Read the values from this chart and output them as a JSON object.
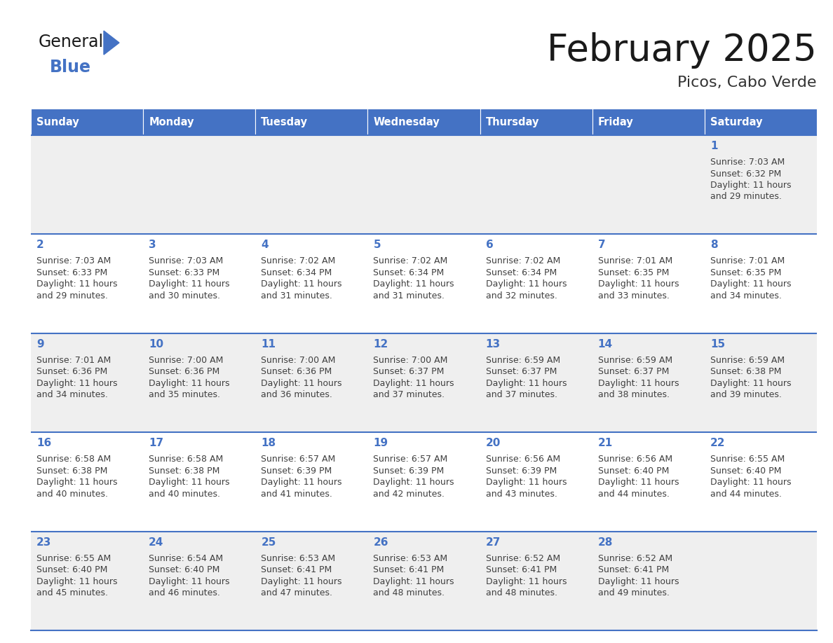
{
  "title": "February 2025",
  "subtitle": "Picos, Cabo Verde",
  "days_of_week": [
    "Sunday",
    "Monday",
    "Tuesday",
    "Wednesday",
    "Thursday",
    "Friday",
    "Saturday"
  ],
  "header_bg": "#4472C4",
  "header_text": "#FFFFFF",
  "row_bg_odd": "#EFEFEF",
  "row_bg_even": "#FFFFFF",
  "cell_border_color": "#4472C4",
  "day_num_color": "#4472C4",
  "info_text_color": "#404040",
  "title_color": "#1a1a1a",
  "subtitle_color": "#333333",
  "logo_general_color": "#1a1a1a",
  "logo_blue_color": "#4472C4",
  "logo_triangle_color": "#4472C4",
  "calendar_data": [
    [
      null,
      null,
      null,
      null,
      null,
      null,
      {
        "day": "1",
        "sunrise": "Sunrise: 7:03 AM",
        "sunset": "Sunset: 6:32 PM",
        "daylight1": "Daylight: 11 hours",
        "daylight2": "and 29 minutes."
      }
    ],
    [
      {
        "day": "2",
        "sunrise": "Sunrise: 7:03 AM",
        "sunset": "Sunset: 6:33 PM",
        "daylight1": "Daylight: 11 hours",
        "daylight2": "and 29 minutes."
      },
      {
        "day": "3",
        "sunrise": "Sunrise: 7:03 AM",
        "sunset": "Sunset: 6:33 PM",
        "daylight1": "Daylight: 11 hours",
        "daylight2": "and 30 minutes."
      },
      {
        "day": "4",
        "sunrise": "Sunrise: 7:02 AM",
        "sunset": "Sunset: 6:34 PM",
        "daylight1": "Daylight: 11 hours",
        "daylight2": "and 31 minutes."
      },
      {
        "day": "5",
        "sunrise": "Sunrise: 7:02 AM",
        "sunset": "Sunset: 6:34 PM",
        "daylight1": "Daylight: 11 hours",
        "daylight2": "and 31 minutes."
      },
      {
        "day": "6",
        "sunrise": "Sunrise: 7:02 AM",
        "sunset": "Sunset: 6:34 PM",
        "daylight1": "Daylight: 11 hours",
        "daylight2": "and 32 minutes."
      },
      {
        "day": "7",
        "sunrise": "Sunrise: 7:01 AM",
        "sunset": "Sunset: 6:35 PM",
        "daylight1": "Daylight: 11 hours",
        "daylight2": "and 33 minutes."
      },
      {
        "day": "8",
        "sunrise": "Sunrise: 7:01 AM",
        "sunset": "Sunset: 6:35 PM",
        "daylight1": "Daylight: 11 hours",
        "daylight2": "and 34 minutes."
      }
    ],
    [
      {
        "day": "9",
        "sunrise": "Sunrise: 7:01 AM",
        "sunset": "Sunset: 6:36 PM",
        "daylight1": "Daylight: 11 hours",
        "daylight2": "and 34 minutes."
      },
      {
        "day": "10",
        "sunrise": "Sunrise: 7:00 AM",
        "sunset": "Sunset: 6:36 PM",
        "daylight1": "Daylight: 11 hours",
        "daylight2": "and 35 minutes."
      },
      {
        "day": "11",
        "sunrise": "Sunrise: 7:00 AM",
        "sunset": "Sunset: 6:36 PM",
        "daylight1": "Daylight: 11 hours",
        "daylight2": "and 36 minutes."
      },
      {
        "day": "12",
        "sunrise": "Sunrise: 7:00 AM",
        "sunset": "Sunset: 6:37 PM",
        "daylight1": "Daylight: 11 hours",
        "daylight2": "and 37 minutes."
      },
      {
        "day": "13",
        "sunrise": "Sunrise: 6:59 AM",
        "sunset": "Sunset: 6:37 PM",
        "daylight1": "Daylight: 11 hours",
        "daylight2": "and 37 minutes."
      },
      {
        "day": "14",
        "sunrise": "Sunrise: 6:59 AM",
        "sunset": "Sunset: 6:37 PM",
        "daylight1": "Daylight: 11 hours",
        "daylight2": "and 38 minutes."
      },
      {
        "day": "15",
        "sunrise": "Sunrise: 6:59 AM",
        "sunset": "Sunset: 6:38 PM",
        "daylight1": "Daylight: 11 hours",
        "daylight2": "and 39 minutes."
      }
    ],
    [
      {
        "day": "16",
        "sunrise": "Sunrise: 6:58 AM",
        "sunset": "Sunset: 6:38 PM",
        "daylight1": "Daylight: 11 hours",
        "daylight2": "and 40 minutes."
      },
      {
        "day": "17",
        "sunrise": "Sunrise: 6:58 AM",
        "sunset": "Sunset: 6:38 PM",
        "daylight1": "Daylight: 11 hours",
        "daylight2": "and 40 minutes."
      },
      {
        "day": "18",
        "sunrise": "Sunrise: 6:57 AM",
        "sunset": "Sunset: 6:39 PM",
        "daylight1": "Daylight: 11 hours",
        "daylight2": "and 41 minutes."
      },
      {
        "day": "19",
        "sunrise": "Sunrise: 6:57 AM",
        "sunset": "Sunset: 6:39 PM",
        "daylight1": "Daylight: 11 hours",
        "daylight2": "and 42 minutes."
      },
      {
        "day": "20",
        "sunrise": "Sunrise: 6:56 AM",
        "sunset": "Sunset: 6:39 PM",
        "daylight1": "Daylight: 11 hours",
        "daylight2": "and 43 minutes."
      },
      {
        "day": "21",
        "sunrise": "Sunrise: 6:56 AM",
        "sunset": "Sunset: 6:40 PM",
        "daylight1": "Daylight: 11 hours",
        "daylight2": "and 44 minutes."
      },
      {
        "day": "22",
        "sunrise": "Sunrise: 6:55 AM",
        "sunset": "Sunset: 6:40 PM",
        "daylight1": "Daylight: 11 hours",
        "daylight2": "and 44 minutes."
      }
    ],
    [
      {
        "day": "23",
        "sunrise": "Sunrise: 6:55 AM",
        "sunset": "Sunset: 6:40 PM",
        "daylight1": "Daylight: 11 hours",
        "daylight2": "and 45 minutes."
      },
      {
        "day": "24",
        "sunrise": "Sunrise: 6:54 AM",
        "sunset": "Sunset: 6:40 PM",
        "daylight1": "Daylight: 11 hours",
        "daylight2": "and 46 minutes."
      },
      {
        "day": "25",
        "sunrise": "Sunrise: 6:53 AM",
        "sunset": "Sunset: 6:41 PM",
        "daylight1": "Daylight: 11 hours",
        "daylight2": "and 47 minutes."
      },
      {
        "day": "26",
        "sunrise": "Sunrise: 6:53 AM",
        "sunset": "Sunset: 6:41 PM",
        "daylight1": "Daylight: 11 hours",
        "daylight2": "and 48 minutes."
      },
      {
        "day": "27",
        "sunrise": "Sunrise: 6:52 AM",
        "sunset": "Sunset: 6:41 PM",
        "daylight1": "Daylight: 11 hours",
        "daylight2": "and 48 minutes."
      },
      {
        "day": "28",
        "sunrise": "Sunrise: 6:52 AM",
        "sunset": "Sunset: 6:41 PM",
        "daylight1": "Daylight: 11 hours",
        "daylight2": "and 49 minutes."
      },
      null
    ]
  ]
}
